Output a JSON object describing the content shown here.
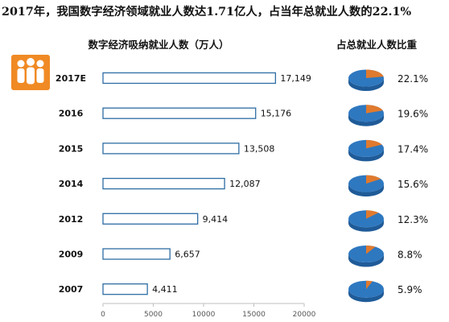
{
  "header": {
    "headline": "2017年，我国数字经济领域就业人数达1.71亿人，占当年总就业人数的22.1%",
    "bar_title": "数字经济吸纳就业人数（万人）",
    "pie_title": "占总就业人数比重"
  },
  "chart_data": [
    {
      "type": "bar",
      "orientation": "horizontal",
      "title": "数字经济吸纳就业人数（万人）",
      "categories": [
        "2017E",
        "2016",
        "2015",
        "2014",
        "2012",
        "2009",
        "2007"
      ],
      "values": [
        17149,
        15176,
        13508,
        12087,
        9414,
        6657,
        4411
      ],
      "value_labels": [
        "17,149",
        "15,176",
        "13,508",
        "12,087",
        "9,414",
        "6,657",
        "4,411"
      ],
      "xlim": [
        0,
        20000
      ],
      "xticks": [
        0,
        5000,
        10000,
        15000,
        20000
      ],
      "xtick_labels": [
        "0",
        "5000",
        "10000",
        "15000",
        "20000"
      ],
      "bar_fill": "#ffffff",
      "bar_stroke": "#2e6da4"
    },
    {
      "type": "pie",
      "title": "占总就业人数比重",
      "categories": [
        "2017E",
        "2016",
        "2015",
        "2014",
        "2012",
        "2009",
        "2007"
      ],
      "values": [
        22.1,
        19.6,
        17.4,
        15.6,
        12.3,
        8.8,
        5.9
      ],
      "value_labels": [
        "22.1%",
        "19.6%",
        "17.4%",
        "15.6%",
        "12.3%",
        "8.8%",
        "5.9%"
      ],
      "colors": {
        "share": "#e07a2e",
        "rest": "#2e78c0"
      }
    }
  ]
}
